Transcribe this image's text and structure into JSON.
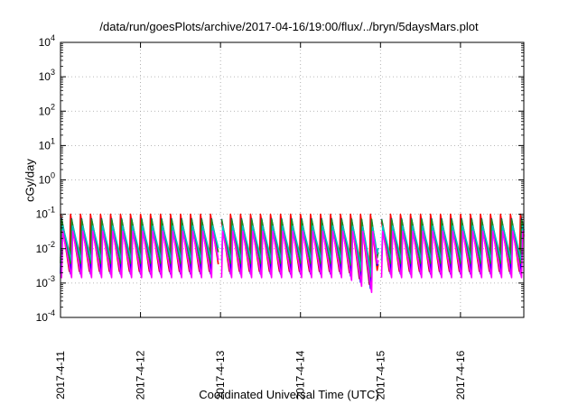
{
  "chart_data": {
    "type": "line",
    "title": "/data/run/goesPlots/archive/2017-04-16/19:00/flux/../bryn/5daysMars.plot",
    "xlabel": "Coordinated Universal Time (UTC)",
    "ylabel": "cGy/day",
    "y_scale": "log",
    "ylim": [
      0.0001,
      10000
    ],
    "y_ticks": [
      {
        "value": 0.0001,
        "base": "10",
        "exp": "-4"
      },
      {
        "value": 0.001,
        "base": "10",
        "exp": "-3"
      },
      {
        "value": 0.01,
        "base": "10",
        "exp": "-2"
      },
      {
        "value": 0.1,
        "base": "10",
        "exp": "-1"
      },
      {
        "value": 1,
        "base": "10",
        "exp": "0"
      },
      {
        "value": 10,
        "base": "10",
        "exp": "1"
      },
      {
        "value": 100,
        "base": "10",
        "exp": "2"
      },
      {
        "value": 1000,
        "base": "10",
        "exp": "3"
      },
      {
        "value": 10000,
        "base": "10",
        "exp": "4"
      }
    ],
    "xlim": [
      "2017-04-11T00:00",
      "2017-04-16T19:00"
    ],
    "x_ticks": [
      {
        "value": "2017-04-11T00:00",
        "label": "2017-4-11"
      },
      {
        "value": "2017-04-12T00:00",
        "label": "2017-4-12"
      },
      {
        "value": "2017-04-13T00:00",
        "label": "2017-4-13"
      },
      {
        "value": "2017-04-14T00:00",
        "label": "2017-4-14"
      },
      {
        "value": "2017-04-15T00:00",
        "label": "2017-4-15"
      },
      {
        "value": "2017-04-16T00:00",
        "label": "2017-4-16"
      }
    ],
    "grid": true,
    "pattern": {
      "period_hours": 3,
      "peak_value": 0.1,
      "trough_value": 0.0015,
      "dip_start": "2017-04-14T14:00",
      "dip_end": "2017-04-14T23:00",
      "dip_min_value": 0.0004,
      "gaps": [
        "2017-04-13T00:00",
        "2017-04-15T00:00"
      ]
    },
    "series": [
      {
        "color": "#ff0000",
        "peak_scale": 1.0,
        "trough_scale": 0.9
      },
      {
        "color": "#0000ff",
        "peak_scale": 0.95,
        "trough_scale": 1.0
      },
      {
        "color": "#228b22",
        "peak_scale": 0.75,
        "trough_scale": 1.8
      },
      {
        "color": "#00bfbf",
        "peak_scale": 0.55,
        "trough_scale": 2.6
      },
      {
        "color": "#ff00ff",
        "peak_scale": 0.35,
        "trough_scale": 0.7
      }
    ]
  }
}
